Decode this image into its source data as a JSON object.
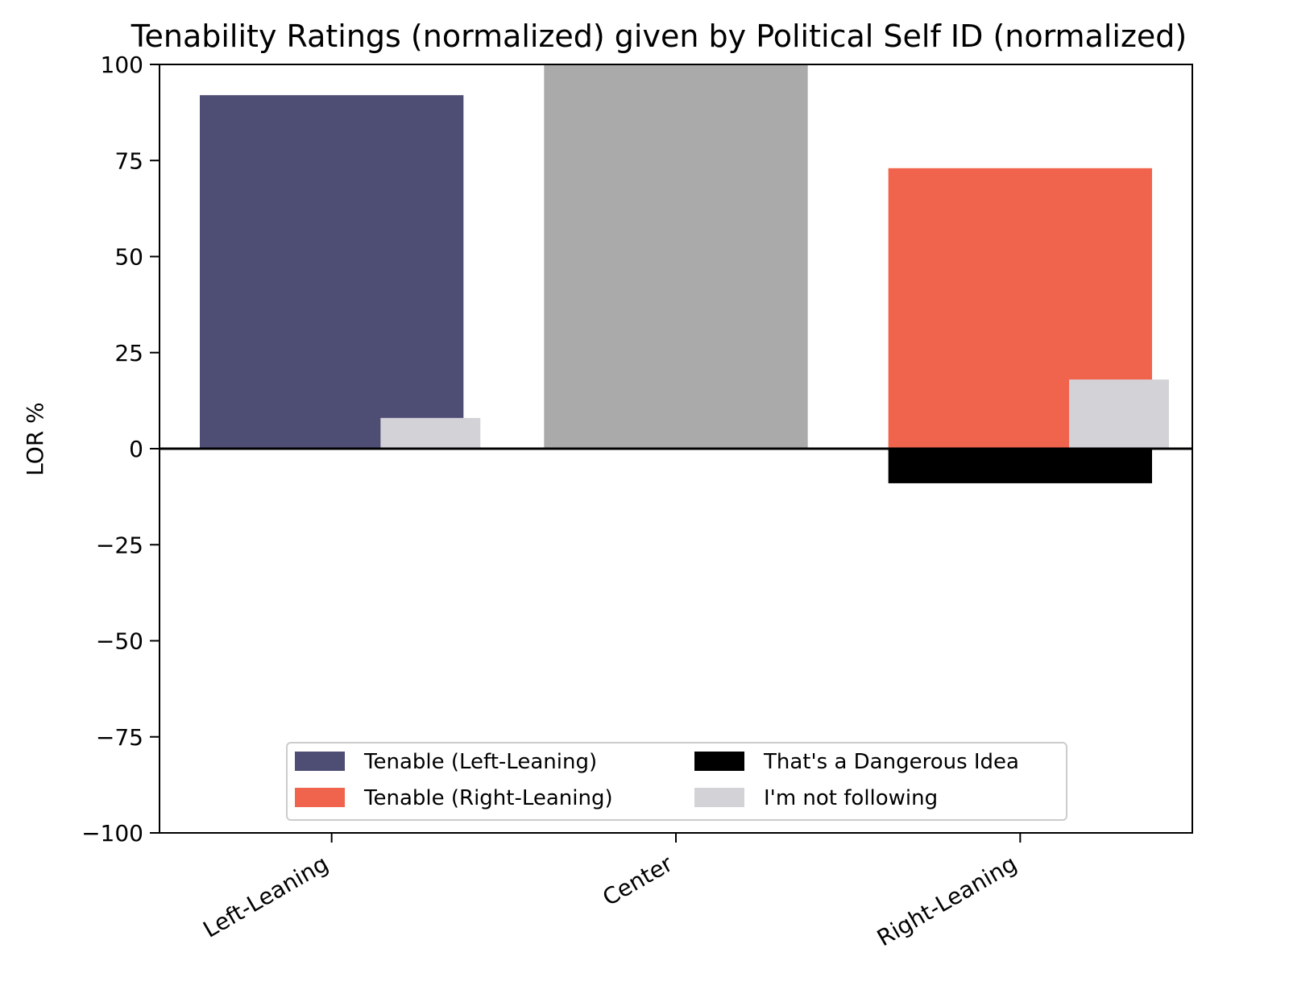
{
  "chart_data": {
    "type": "bar",
    "title": "Tenability Ratings (normalized) given by Political Self ID (normalized)",
    "xlabel": "",
    "ylabel": "LOR %",
    "ylim": [
      -100,
      100
    ],
    "yticks": [
      100,
      75,
      50,
      25,
      0,
      -25,
      -50,
      -75,
      -100
    ],
    "ytick_labels": [
      "100",
      "75",
      "50",
      "25",
      "0",
      "−25",
      "−50",
      "−75",
      "−100"
    ],
    "categories": [
      "Left-Leaning",
      "Center",
      "Right-Leaning"
    ],
    "grid": false,
    "legend_position": "lower center",
    "series": [
      {
        "key": "tenable_left",
        "name": "Tenable (Left-Leaning)",
        "color": "#4e4d74",
        "values": [
          92,
          null,
          null
        ]
      },
      {
        "key": "tenable_right",
        "name": "Tenable (Right-Leaning)",
        "color": "#f0644d",
        "values": [
          null,
          null,
          73
        ]
      },
      {
        "key": "center",
        "color": "#aaaaaa",
        "values": [
          null,
          100,
          null
        ]
      },
      {
        "key": "dangerous",
        "name": "That's a Dangerous Idea",
        "color": "#000000",
        "values": [
          null,
          null,
          -9
        ]
      },
      {
        "key": "not_following",
        "name": "I'm not following",
        "color": "#d3d2d7",
        "values": [
          8,
          null,
          18
        ]
      }
    ],
    "legend": [
      {
        "label": "Tenable (Left-Leaning)",
        "color": "#4e4d74"
      },
      {
        "label": "Tenable (Right-Leaning)",
        "color": "#f0644d"
      },
      {
        "label": "That's a Dangerous Idea",
        "color": "#000000"
      },
      {
        "label": "I'm not following",
        "color": "#d3d2d7"
      }
    ],
    "zero_line": true
  }
}
